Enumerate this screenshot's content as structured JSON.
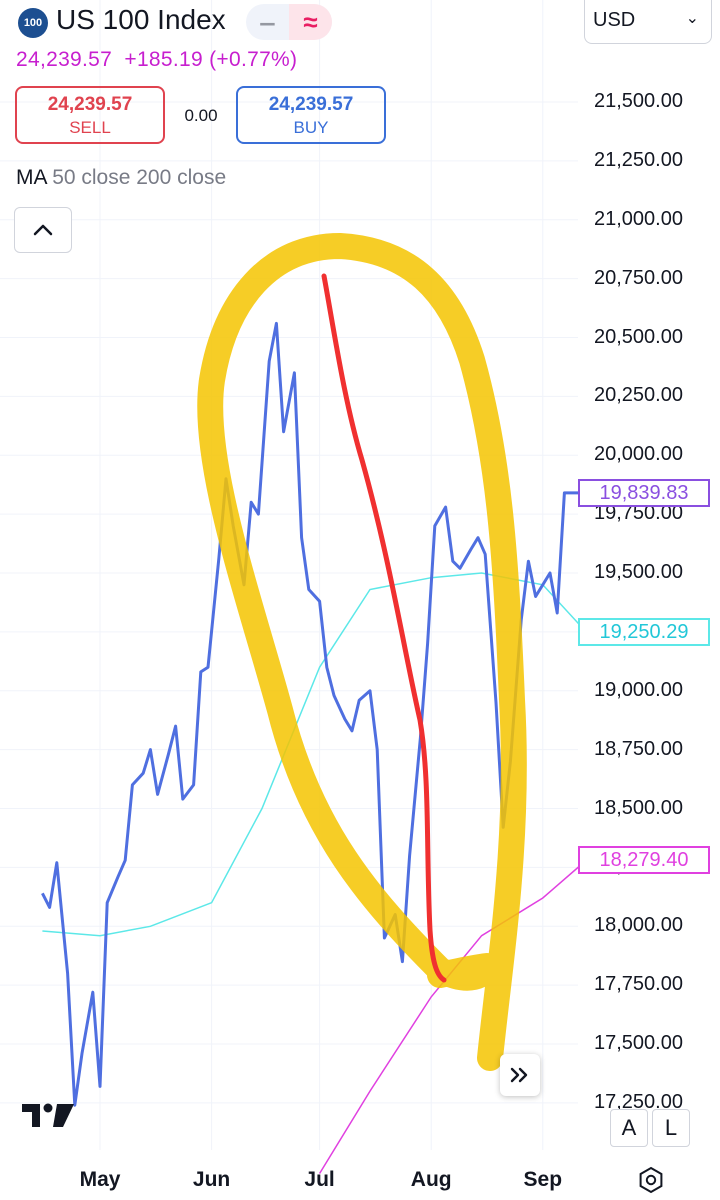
{
  "header": {
    "symbol_badge": "100",
    "title": "US 100 Index",
    "price_line": "24,239.57  +185.19 (+0.77%)",
    "sell": {
      "price": "24,239.57",
      "label": "SELL"
    },
    "spread": "0.00",
    "buy": {
      "price": "24,239.57",
      "label": "BUY"
    },
    "ma_label": "MA",
    "ma_values": "50 close 200 close",
    "currency": "USD"
  },
  "colors": {
    "price_line": "#4f6fe0",
    "ma50": "#5ce8e8",
    "ma200": "#e040e0",
    "highlight": "#f5c400",
    "red_line": "#f03030",
    "price_tag": "#8a4fe0",
    "header_price": "#c71fcf"
  },
  "icons": {
    "toggle_left": "minus-icon",
    "toggle_right": "wave-icon",
    "collapse": "chevron-up-icon",
    "goto_realtime": "double-chevron-right-icon",
    "settings": "gear-icon",
    "brand": "tradingview-logo"
  },
  "bottom_buttons": {
    "auto": "A",
    "log": "L"
  },
  "chart_data": {
    "type": "line",
    "title": "US 100 Index",
    "xlabel": "",
    "ylabel": "",
    "x_ticks": [
      "May",
      "Jun",
      "Jul",
      "Aug",
      "Sep"
    ],
    "y_ticks": [
      "21,500.00",
      "21,250.00",
      "21,000.00",
      "20,750.00",
      "20,500.00",
      "20,250.00",
      "20,000.00",
      "19,750.00",
      "19,500.00",
      "19,250.00",
      "19,000.00",
      "18,750.00",
      "18,500.00",
      "18,250.00",
      "18,000.00",
      "17,750.00",
      "17,500.00",
      "17,250.00"
    ],
    "ylim": [
      17250,
      21500
    ],
    "grid": true,
    "series": [
      {
        "name": "price",
        "x": [
          "Apr 15",
          "Apr 17",
          "Apr 19",
          "Apr 22",
          "Apr 24",
          "Apr 26",
          "Apr 29",
          "May 1",
          "May 3",
          "May 6",
          "May 8",
          "May 10",
          "May 13",
          "May 15",
          "May 17",
          "May 20",
          "May 22",
          "May 24",
          "May 27",
          "May 29",
          "May 31",
          "Jun 3",
          "Jun 5",
          "Jun 7",
          "Jun 10",
          "Jun 12",
          "Jun 14",
          "Jun 17",
          "Jun 19",
          "Jun 21",
          "Jun 24",
          "Jun 26",
          "Jun 28",
          "Jul 1",
          "Jul 3",
          "Jul 5",
          "Jul 8",
          "Jul 10",
          "Jul 12",
          "Jul 15",
          "Jul 17",
          "Jul 19",
          "Jul 22",
          "Jul 24",
          "Jul 26",
          "Jul 29",
          "Jul 31",
          "Aug 2",
          "Aug 5",
          "Aug 7",
          "Aug 9",
          "Aug 12",
          "Aug 14",
          "Aug 16",
          "Aug 19",
          "Aug 21",
          "Aug 23",
          "Aug 26",
          "Aug 28",
          "Aug 30",
          "Sep 3",
          "Sep 5",
          "Sep 7",
          "Sep 10",
          "Sep 12",
          "Sep 13"
        ],
        "values": [
          18140,
          18080,
          18270,
          17800,
          17240,
          17460,
          17720,
          17320,
          18100,
          18210,
          18280,
          18600,
          18650,
          18750,
          18560,
          18730,
          18850,
          18540,
          18600,
          19080,
          19100,
          19560,
          19900,
          19700,
          19450,
          19800,
          19750,
          20400,
          20560,
          20100,
          20350,
          19650,
          19430,
          19380,
          19100,
          18980,
          18880,
          18830,
          18960,
          19000,
          18750,
          17950,
          18050,
          17850,
          18300,
          18800,
          19200,
          19700,
          19780,
          19550,
          19520,
          19600,
          19650,
          19580,
          18950,
          18420,
          18700,
          19300,
          19550,
          19400,
          19500,
          19330,
          19840,
          19840,
          19840,
          19839.83
        ]
      },
      {
        "name": "MA 50 close",
        "x": [
          "Apr 15",
          "May 1",
          "May 15",
          "Jun 1",
          "Jun 15",
          "Jul 1",
          "Jul 15",
          "Aug 1",
          "Aug 15",
          "Sep 1",
          "Sep 13"
        ],
        "values": [
          17980,
          17960,
          18000,
          18100,
          18500,
          19100,
          19430,
          19480,
          19500,
          19450,
          19250.29
        ]
      },
      {
        "name": "MA 200 close",
        "x": [
          "Jul 1",
          "Jul 15",
          "Aug 1",
          "Aug 15",
          "Sep 1",
          "Sep 13"
        ],
        "values": [
          16950,
          17300,
          17700,
          17960,
          18120,
          18279.4
        ]
      }
    ],
    "last_price_tag": "19,839.83",
    "ma50_tag": "19,250.29",
    "ma200_tag": "18,279.40"
  }
}
